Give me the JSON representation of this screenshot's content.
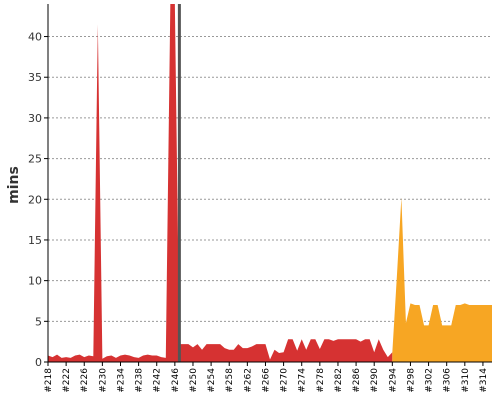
{
  "chart_data": {
    "type": "area",
    "title": "",
    "xlabel": "",
    "ylabel": "mins",
    "ylim": [
      0,
      44
    ],
    "yticks": [
      0,
      5,
      10,
      15,
      20,
      25,
      30,
      35,
      40
    ],
    "grid": true,
    "colors": {
      "stable": "#d63232",
      "unstable": "#f7a623",
      "highlight": "#555555",
      "grid": "#999999",
      "axis": "#000000"
    },
    "x_tick_labels": [
      "#218",
      "#222",
      "#226",
      "#230",
      "#234",
      "#238",
      "#242",
      "#246",
      "#250",
      "#254",
      "#258",
      "#262",
      "#266",
      "#270",
      "#274",
      "#278",
      "#282",
      "#286",
      "#290",
      "#294",
      "#298",
      "#302",
      "#306",
      "#310",
      "#314"
    ],
    "highlight_build": "#247",
    "series": [
      {
        "status": "stable",
        "x": [
          "#218",
          "#219",
          "#220",
          "#221",
          "#222",
          "#223",
          "#224",
          "#225",
          "#226",
          "#227",
          "#228",
          "#229",
          "#230",
          "#231",
          "#232",
          "#233",
          "#234",
          "#235",
          "#236",
          "#237",
          "#238",
          "#239",
          "#240",
          "#241",
          "#242",
          "#243",
          "#244",
          "#245",
          "#246",
          "#247",
          "#248",
          "#249",
          "#250",
          "#251",
          "#252",
          "#253",
          "#254",
          "#255",
          "#256",
          "#257",
          "#258",
          "#259",
          "#260",
          "#261",
          "#262",
          "#263",
          "#264",
          "#265",
          "#266",
          "#267",
          "#268",
          "#269",
          "#270",
          "#271",
          "#272",
          "#273",
          "#274",
          "#275",
          "#276",
          "#277",
          "#278",
          "#279",
          "#280",
          "#281",
          "#282",
          "#283",
          "#284",
          "#285",
          "#286",
          "#287",
          "#288",
          "#289",
          "#290",
          "#291",
          "#292",
          "#293",
          "#294"
        ],
        "y": [
          0.8,
          0.6,
          0.9,
          0.5,
          0.6,
          0.5,
          0.8,
          0.9,
          0.6,
          0.8,
          0.7,
          41.5,
          0.4,
          0.7,
          0.8,
          0.5,
          0.8,
          0.9,
          0.8,
          0.6,
          0.5,
          0.8,
          0.9,
          0.8,
          0.8,
          0.6,
          0.5,
          44,
          44,
          2.2,
          2.2,
          2.2,
          1.8,
          2.2,
          1.5,
          2.2,
          2.2,
          2.2,
          2.2,
          1.7,
          1.5,
          1.5,
          2.2,
          1.7,
          1.7,
          1.9,
          2.2,
          2.2,
          2.2,
          0.3,
          1.5,
          1.1,
          1.2,
          2.8,
          2.8,
          1.4,
          2.8,
          1.5,
          2.8,
          2.8,
          1.6,
          2.8,
          2.8,
          2.6,
          2.8,
          2.8,
          2.8,
          2.8,
          2.8,
          2.5,
          2.8,
          2.8,
          1.2,
          2.8,
          1.5,
          0.6,
          1.2
        ]
      },
      {
        "status": "unstable",
        "x": [
          "#294",
          "#295",
          "#296",
          "#297",
          "#298",
          "#299",
          "#300",
          "#301",
          "#302",
          "#303",
          "#304",
          "#305",
          "#306",
          "#307",
          "#308",
          "#309",
          "#310",
          "#311",
          "#312",
          "#313",
          "#314",
          "#315",
          "#316"
        ],
        "y": [
          1.2,
          10.5,
          20.2,
          4.8,
          7.2,
          7,
          7,
          4.5,
          4.5,
          7,
          7,
          4.5,
          4.5,
          4.5,
          7,
          7,
          7.2,
          7,
          7,
          7,
          7,
          7,
          7
        ]
      }
    ]
  }
}
